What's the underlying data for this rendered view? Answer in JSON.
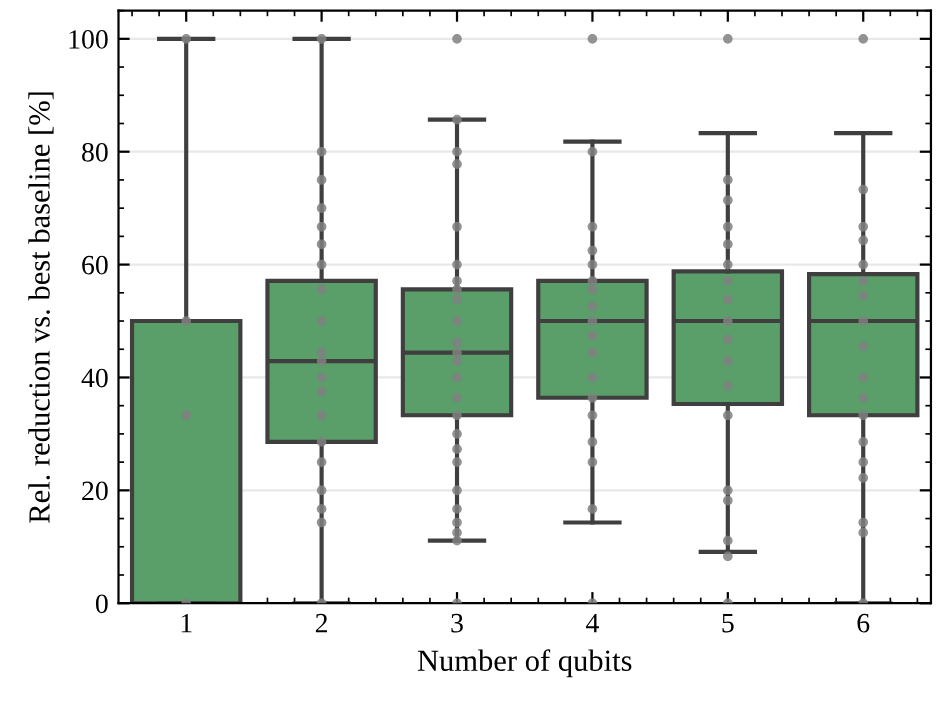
{
  "chart_data": {
    "type": "box",
    "xlabel": "Number of qubits",
    "ylabel": "Rel. reduction vs. best baseline [%]",
    "categories": [
      "1",
      "2",
      "3",
      "4",
      "5",
      "6"
    ],
    "ylim": [
      0,
      105
    ],
    "yticks": [
      0,
      20,
      40,
      60,
      80,
      100
    ],
    "grid": "y",
    "legend": false,
    "series": [
      {
        "color": "#5a9e6a",
        "boxes": [
          {
            "low": 0,
            "q1": 0,
            "median": 50,
            "q3": 50,
            "high": 100
          },
          {
            "low": 0,
            "q1": 28.6,
            "median": 42.9,
            "q3": 57.1,
            "high": 100
          },
          {
            "low": 11.1,
            "q1": 33.3,
            "median": 44.4,
            "q3": 55.6,
            "high": 85.7
          },
          {
            "low": 14.3,
            "q1": 36.4,
            "median": 50,
            "q3": 57.1,
            "high": 81.8
          },
          {
            "low": 9.1,
            "q1": 35.3,
            "median": 50,
            "q3": 58.8,
            "high": 83.3
          },
          {
            "low": 0,
            "q1": 33.3,
            "median": 50,
            "q3": 58.3,
            "high": 83.3
          }
        ]
      },
      {
        "type": "scatter",
        "color": "#808080",
        "marker": "circle",
        "x": [
          "1",
          "1",
          "1",
          "1",
          "2",
          "2",
          "2",
          "2",
          "2",
          "2",
          "2",
          "2",
          "2",
          "2",
          "2",
          "2",
          "2",
          "2",
          "2",
          "2",
          "2",
          "2",
          "2",
          "2",
          "3",
          "3",
          "3",
          "3",
          "3",
          "3",
          "3",
          "3",
          "3",
          "3",
          "3",
          "3",
          "3",
          "3",
          "3",
          "3",
          "3",
          "3",
          "3",
          "3",
          "3",
          "3",
          "3",
          "3",
          "3",
          "4",
          "4",
          "4",
          "4",
          "4",
          "4",
          "4",
          "4",
          "4",
          "4",
          "4",
          "4",
          "4",
          "4",
          "4",
          "4",
          "4",
          "4",
          "5",
          "5",
          "5",
          "5",
          "5",
          "5",
          "5",
          "5",
          "5",
          "5",
          "5",
          "5",
          "5",
          "5",
          "5",
          "5",
          "5",
          "5",
          "6",
          "6",
          "6",
          "6",
          "6",
          "6",
          "6",
          "6",
          "6",
          "6",
          "6",
          "6",
          "6",
          "6",
          "6",
          "6",
          "6",
          "6"
        ],
        "values": [
          0,
          33.3,
          50,
          100,
          0,
          14.3,
          16.7,
          20,
          25,
          28.6,
          33.3,
          37.5,
          40,
          42.9,
          44.4,
          50,
          55.6,
          60,
          63.6,
          66.7,
          70,
          75,
          80,
          100,
          0,
          11.1,
          12.5,
          14.3,
          16.7,
          20,
          25,
          27.3,
          30,
          33.3,
          36.4,
          40,
          42.9,
          44.4,
          46.2,
          50,
          53.8,
          55.6,
          57.1,
          60,
          66.7,
          77.8,
          80,
          85.7,
          100,
          0,
          16.7,
          25,
          28.6,
          33.3,
          36.4,
          40,
          44.4,
          47.4,
          50,
          52.6,
          55.6,
          57.1,
          60,
          62.5,
          66.7,
          80,
          100,
          0,
          8.3,
          11.1,
          18.2,
          20,
          33.3,
          38.5,
          42.9,
          46.7,
          50,
          53.8,
          57.1,
          60,
          63.6,
          66.7,
          71.4,
          75,
          100,
          0,
          12.5,
          14.3,
          22.2,
          25,
          28.6,
          33.3,
          36.4,
          40,
          45.5,
          50,
          54.5,
          57.1,
          60,
          64.3,
          66.7,
          73.3,
          100
        ]
      }
    ]
  }
}
